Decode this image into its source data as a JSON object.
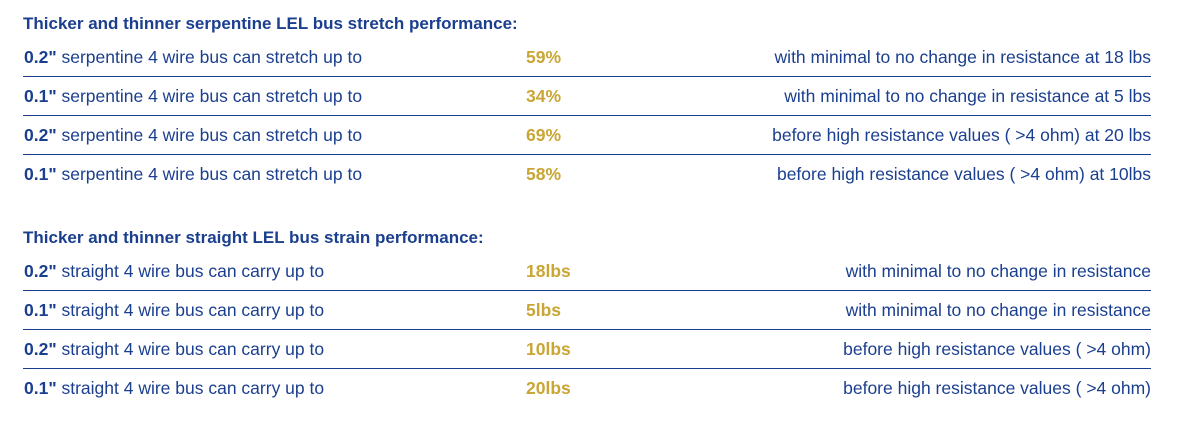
{
  "stretch": {
    "heading": "Thicker and thinner serpentine LEL bus stretch performance:",
    "rows": [
      {
        "size": "0.2\"",
        "desc": " serpentine 4 wire bus can stretch up to",
        "value": "59%",
        "note": "with minimal to no change in resistance at 18 lbs"
      },
      {
        "size": "0.1\"",
        "desc": " serpentine 4 wire bus can stretch up to",
        "value": "34%",
        "note": "with minimal to no change in resistance at 5 lbs"
      },
      {
        "size": "0.2\"",
        "desc": " serpentine 4 wire bus can stretch up to",
        "value": "69%",
        "note": "before high resistance values ( >4 ohm) at 20 lbs"
      },
      {
        "size": "0.1\"",
        "desc": " serpentine 4 wire bus can stretch up to",
        "value": "58%",
        "note": "before high resistance values ( >4 ohm) at 10lbs"
      }
    ]
  },
  "strain": {
    "heading": "Thicker and thinner straight LEL bus strain performance:",
    "rows": [
      {
        "size": "0.2\"",
        "desc": " straight 4 wire bus can carry up to",
        "value": "18lbs",
        "note": "with minimal to no change in resistance"
      },
      {
        "size": "0.1\"",
        "desc": " straight 4 wire bus can carry up to",
        "value": "5lbs",
        "note": "with minimal to no change in resistance"
      },
      {
        "size": "0.2\"",
        "desc": " straight 4 wire bus can carry up to",
        "value": "10lbs",
        "note": "before high resistance values ( >4 ohm)"
      },
      {
        "size": "0.1\"",
        "desc": " straight 4 wire bus can carry up to",
        "value": "20lbs",
        "note": "before high resistance values ( >4 ohm)"
      }
    ]
  },
  "colors": {
    "text": "#1b3f8f",
    "highlight": "#c9a635",
    "rule": "#1b3f8f"
  }
}
